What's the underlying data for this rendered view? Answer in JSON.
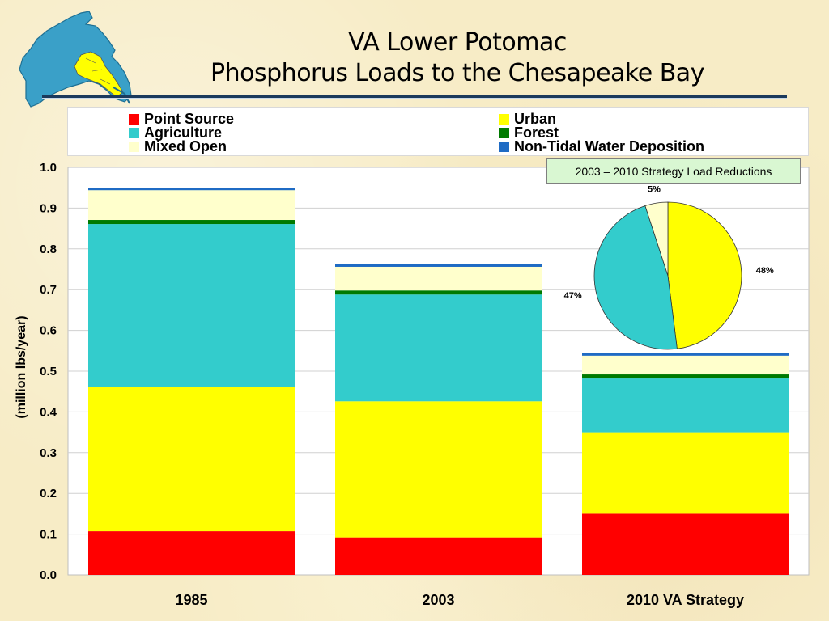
{
  "title": {
    "line1": "VA Lower Potomac",
    "line2": "Phosphorus Loads to the Chesapeake Bay"
  },
  "colors": {
    "point_source": "#ff0000",
    "urban": "#ffff00",
    "agriculture": "#33cccc",
    "forest": "#007a00",
    "mixed_open": "#ffffcc",
    "non_tidal": "#1f6bc4",
    "pie_title_bg": "#d9f7d2"
  },
  "legend": [
    {
      "key": "point_source",
      "label": "Point Source"
    },
    {
      "key": "urban",
      "label": "Urban"
    },
    {
      "key": "agriculture",
      "label": "Agriculture"
    },
    {
      "key": "forest",
      "label": "Forest"
    },
    {
      "key": "mixed_open",
      "label": "Mixed Open"
    },
    {
      "key": "non_tidal",
      "label": "Non-Tidal Water Deposition"
    }
  ],
  "chart_data": [
    {
      "type": "bar",
      "stacked": true,
      "title": "",
      "xlabel": "",
      "ylabel": "(million lbs/year)",
      "ylim": [
        0,
        1.0
      ],
      "yticks": [
        "0.0",
        "0.1",
        "0.2",
        "0.3",
        "0.4",
        "0.5",
        "0.6",
        "0.7",
        "0.8",
        "0.9",
        "1.0"
      ],
      "grid": true,
      "legend_position": "top",
      "categories": [
        "1985",
        "2003",
        "2010 VA Strategy"
      ],
      "series": [
        {
          "name": "Point Source",
          "key": "point_source",
          "values": [
            0.107,
            0.092,
            0.15
          ]
        },
        {
          "name": "Urban",
          "key": "urban",
          "values": [
            0.354,
            0.334,
            0.2
          ]
        },
        {
          "name": "Agriculture",
          "key": "agriculture",
          "values": [
            0.4,
            0.262,
            0.132
          ]
        },
        {
          "name": "Forest",
          "key": "forest",
          "values": [
            0.01,
            0.01,
            0.01
          ]
        },
        {
          "name": "Mixed Open",
          "key": "mixed_open",
          "values": [
            0.073,
            0.058,
            0.046
          ]
        },
        {
          "name": "Non-Tidal Water Deposition",
          "key": "non_tidal",
          "values": [
            0.006,
            0.006,
            0.006
          ]
        }
      ]
    },
    {
      "type": "pie",
      "title": "2003 – 2010 Strategy Load Reductions",
      "slices": [
        {
          "key": "urban",
          "value": 48,
          "label": "48%"
        },
        {
          "key": "agriculture",
          "value": 47,
          "label": "47%"
        },
        {
          "key": "mixed_open",
          "value": 5,
          "label": "5%"
        }
      ]
    }
  ]
}
